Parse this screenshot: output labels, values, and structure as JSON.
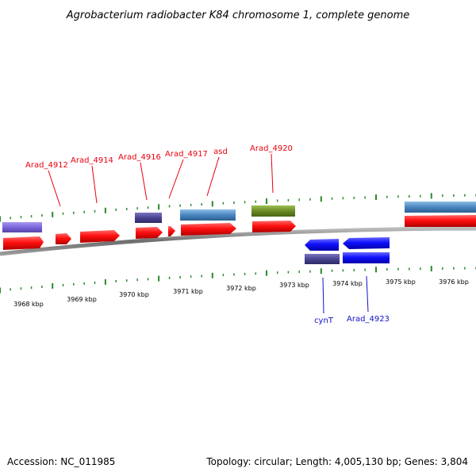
{
  "title": "Agrobacterium radiobacter K84 chromosome 1, complete genome",
  "accession": "Accession: NC_011985",
  "summary": "Topology: circular; Length: 4,005,130 bp; Genes: 3,804",
  "scale_labels": [
    "3968 kbp",
    "3969 kbp",
    "3970 kbp",
    "3971 kbp",
    "3972 kbp",
    "3973 kbp",
    "3974 kbp",
    "3975 kbp",
    "3976 kbp"
  ],
  "gene_labels_forward": [
    "Arad_4912",
    "Arad_4914",
    "Arad_4916",
    "Arad_4917",
    "asd",
    "Arad_4920"
  ],
  "gene_labels_reverse": [
    "cynT",
    "Arad_4923"
  ],
  "colors": {
    "forward_cds": "#ff1a1a",
    "reverse_cds": "#1a1aff",
    "feature_purple": "#7b66d9",
    "feature_slate": "#4a4590",
    "feature_steelblue": "#4a86c0",
    "feature_olive": "#6a8a24",
    "tick_green": "#2a8a2a",
    "backbone": "#8a8a8a"
  }
}
